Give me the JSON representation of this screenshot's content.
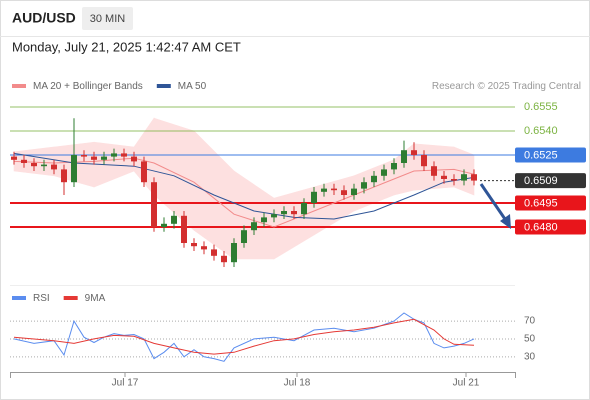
{
  "symbol": "AUD/USD",
  "timeframe": "30 MIN",
  "timestamp": "Monday, July 21, 2025 1:42:47 AM CET",
  "chart_data": [
    {
      "type": "candlestick",
      "source": "Research © 2025 Trading Central",
      "xlim": [
        -0.4,
        50.1
      ],
      "ylim": [
        0.6445,
        0.65625
      ],
      "candles": {
        "up_color": "#2e7d32",
        "down_color": "#d32f2f",
        "x": [
          0,
          1,
          2,
          3,
          4,
          5,
          6,
          7,
          8,
          9,
          10,
          11,
          12,
          13,
          14,
          15,
          16,
          17,
          18,
          19,
          20,
          21,
          22,
          23,
          24,
          25,
          26,
          27,
          28,
          29,
          30,
          31,
          32,
          33,
          34,
          35,
          36,
          37,
          38,
          39,
          40,
          41,
          42,
          43,
          44,
          45,
          46
        ],
        "open": [
          0.6524,
          0.6522,
          0.652,
          0.6518,
          0.6519,
          0.6516,
          0.6508,
          0.6525,
          0.6524,
          0.6522,
          0.6524,
          0.6526,
          0.6524,
          0.6521,
          0.6508,
          0.648,
          0.6482,
          0.6487,
          0.647,
          0.6468,
          0.6466,
          0.6462,
          0.6458,
          0.647,
          0.6478,
          0.6483,
          0.6486,
          0.6488,
          0.649,
          0.6488,
          0.6495,
          0.6502,
          0.6504,
          0.6503,
          0.65,
          0.6504,
          0.6508,
          0.6512,
          0.6516,
          0.652,
          0.6528,
          0.6525,
          0.6518,
          0.6512,
          0.651,
          0.6509,
          0.6513
        ],
        "high": [
          0.6527,
          0.6525,
          0.6523,
          0.6522,
          0.6522,
          0.6519,
          0.6548,
          0.6528,
          0.6527,
          0.6527,
          0.6529,
          0.6529,
          0.6527,
          0.6524,
          0.6511,
          0.6486,
          0.649,
          0.649,
          0.6473,
          0.6471,
          0.6469,
          0.6465,
          0.6473,
          0.6481,
          0.6486,
          0.6489,
          0.6491,
          0.6493,
          0.6493,
          0.6498,
          0.6505,
          0.6507,
          0.6507,
          0.6506,
          0.6507,
          0.6511,
          0.6515,
          0.6519,
          0.6523,
          0.6534,
          0.6533,
          0.6528,
          0.6521,
          0.6515,
          0.6513,
          0.6516,
          0.6516
        ],
        "low": [
          0.6519,
          0.6517,
          0.6515,
          0.6515,
          0.6513,
          0.65,
          0.6505,
          0.6521,
          0.6519,
          0.6519,
          0.6521,
          0.6521,
          0.6518,
          0.6505,
          0.6477,
          0.6477,
          0.6479,
          0.6467,
          0.6465,
          0.6463,
          0.6459,
          0.6455,
          0.6455,
          0.6467,
          0.6475,
          0.648,
          0.6483,
          0.6485,
          0.6485,
          0.6485,
          0.6492,
          0.6499,
          0.65,
          0.6497,
          0.6497,
          0.6501,
          0.6505,
          0.6509,
          0.6513,
          0.6517,
          0.6522,
          0.6515,
          0.6509,
          0.6507,
          0.6506,
          0.6506,
          0.6506
        ],
        "close": [
          0.6522,
          0.652,
          0.6518,
          0.6519,
          0.6516,
          0.6508,
          0.6525,
          0.6524,
          0.6522,
          0.6524,
          0.6526,
          0.6524,
          0.6521,
          0.6508,
          0.648,
          0.6482,
          0.6487,
          0.647,
          0.6468,
          0.6466,
          0.6462,
          0.6458,
          0.647,
          0.6478,
          0.6483,
          0.6486,
          0.6488,
          0.649,
          0.6488,
          0.6495,
          0.6502,
          0.6504,
          0.6503,
          0.65,
          0.6504,
          0.6508,
          0.6512,
          0.6516,
          0.652,
          0.6528,
          0.6525,
          0.6518,
          0.6512,
          0.651,
          0.6509,
          0.6513,
          0.6509
        ]
      },
      "series": [
        {
          "name": "MA 20 + Bollinger Bands",
          "color": "#f28b8b",
          "band_color": "#fde0e0",
          "x": [
            0,
            4,
            8,
            12,
            14,
            18,
            22,
            26,
            30,
            34,
            38,
            40,
            44,
            46
          ],
          "values": [
            0.6521,
            0.652,
            0.6521,
            0.6523,
            0.652,
            0.6508,
            0.6488,
            0.648,
            0.649,
            0.65,
            0.651,
            0.6515,
            0.6516,
            0.6513
          ],
          "upper": [
            0.6527,
            0.653,
            0.6533,
            0.653,
            0.6548,
            0.654,
            0.6515,
            0.6498,
            0.6505,
            0.6512,
            0.6522,
            0.6532,
            0.653,
            0.6525
          ],
          "lower": [
            0.6515,
            0.6512,
            0.6505,
            0.6515,
            0.65,
            0.6478,
            0.646,
            0.646,
            0.6475,
            0.649,
            0.65,
            0.6503,
            0.6505,
            0.65
          ]
        },
        {
          "name": "MA 50",
          "color": "#2f5597",
          "x": [
            0,
            6,
            12,
            16,
            20,
            24,
            28,
            32,
            36,
            40,
            43,
            46
          ],
          "values": [
            0.6526,
            0.652,
            0.6518,
            0.6512,
            0.65,
            0.649,
            0.6486,
            0.6485,
            0.649,
            0.65,
            0.6508,
            0.6511
          ]
        }
      ],
      "levels": [
        {
          "value": 0.6555,
          "color": "#7cb342",
          "label_style": "text"
        },
        {
          "value": 0.654,
          "label": "0.6540",
          "color": "#7cb342",
          "label_style": "text"
        },
        {
          "value": 0.6525,
          "color": "#3d7be0",
          "label_style": "box"
        },
        {
          "value": 0.6509,
          "color": "#333333",
          "label_style": "box",
          "line": "dotted"
        },
        {
          "value": 0.6495,
          "color": "#e8151b",
          "label_style": "box"
        },
        {
          "value": 0.648,
          "label": "0.6480",
          "color": "#e8151b",
          "label_style": "box"
        }
      ]
    },
    {
      "type": "line",
      "xlim": [
        -0.4,
        50.1
      ],
      "ylim": [
        13,
        88
      ],
      "yticks": [
        70,
        50,
        30
      ],
      "grid": true,
      "xticks": [
        {
          "value": 11.1,
          "label": "Jul 17"
        },
        {
          "value": 28.3,
          "label": "Jul 18"
        },
        {
          "value": 45.2,
          "label": "Jul 21"
        }
      ],
      "series": [
        {
          "name": "RSI",
          "color": "#5b8def",
          "x": [
            0,
            2,
            4,
            5,
            6,
            7,
            8,
            9,
            10,
            11,
            12,
            13,
            14,
            15,
            16,
            17,
            18,
            19,
            20,
            21,
            22,
            24,
            26,
            28,
            30,
            32,
            34,
            36,
            38,
            39,
            40,
            41,
            42,
            43,
            44,
            45,
            46
          ],
          "values": [
            50,
            45,
            48,
            32,
            70,
            52,
            46,
            52,
            56,
            54,
            55,
            50,
            28,
            35,
            45,
            30,
            38,
            30,
            28,
            25,
            40,
            50,
            52,
            48,
            60,
            62,
            58,
            62,
            70,
            79,
            72,
            68,
            45,
            40,
            42,
            45,
            50
          ]
        },
        {
          "name": "9MA",
          "color": "#e53935",
          "x": [
            0,
            4,
            6,
            8,
            10,
            12,
            14,
            16,
            18,
            20,
            22,
            24,
            26,
            28,
            30,
            32,
            34,
            36,
            38,
            40,
            42,
            43,
            44,
            46
          ],
          "values": [
            52,
            48,
            45,
            50,
            54,
            53,
            45,
            40,
            35,
            33,
            35,
            42,
            48,
            50,
            55,
            58,
            60,
            63,
            68,
            72,
            60,
            50,
            44,
            43
          ]
        }
      ]
    }
  ]
}
